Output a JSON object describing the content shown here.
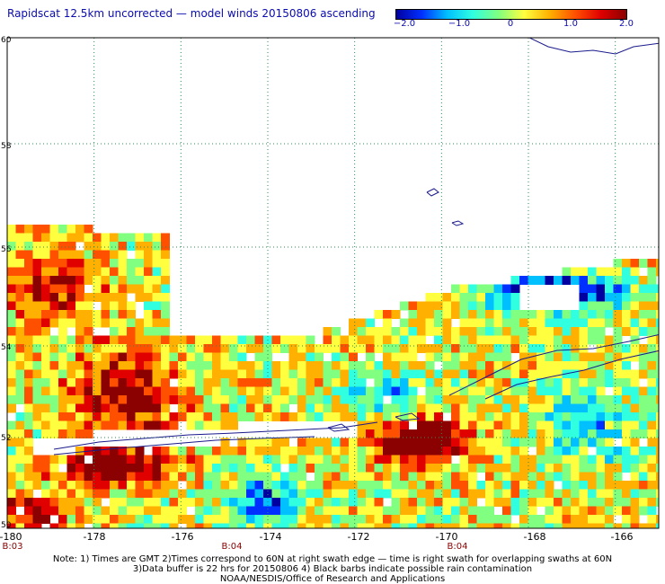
{
  "title": "Rapidscat 12.5km uncorrected — model winds 20150806 ascending",
  "colorbar": {
    "labels": [
      "−2.0",
      "−1.0",
      "0",
      "1.0",
      "2.0"
    ],
    "min": -2.0,
    "max": 2.0,
    "colors": [
      "#0000a0",
      "#0030ff",
      "#00c0ff",
      "#30ffe0",
      "#80ff80",
      "#ffff40",
      "#ffb000",
      "#ff5000",
      "#e00000",
      "#8b0000"
    ]
  },
  "map": {
    "lat_labels": [
      "60",
      "58",
      "56",
      "54",
      "52",
      "50"
    ],
    "lon_labels": [
      "-180",
      "-178",
      "-176",
      "-174",
      "-172",
      "-170",
      "-168",
      "-166"
    ],
    "time_labels": [
      "B:03",
      "B:04",
      "B:04"
    ],
    "lat_range": [
      50,
      60
    ],
    "lon_range": [
      -180,
      -165
    ],
    "colors": {
      "land_outline": "#1a1a8c",
      "grid": "#2e8b57",
      "missing": "#ffffff"
    }
  },
  "notes": {
    "line1": "Note: 1) Times are GMT 2)Times correspond to 60N at right swath edge — time is right swath for overlapping swaths at 60N",
    "line2": "3)Data buffer is 22 hrs for 20150806 4) Black barbs indicate possible rain contamination",
    "line3": "NOAA/NESDIS/Office of Research and Applications"
  }
}
